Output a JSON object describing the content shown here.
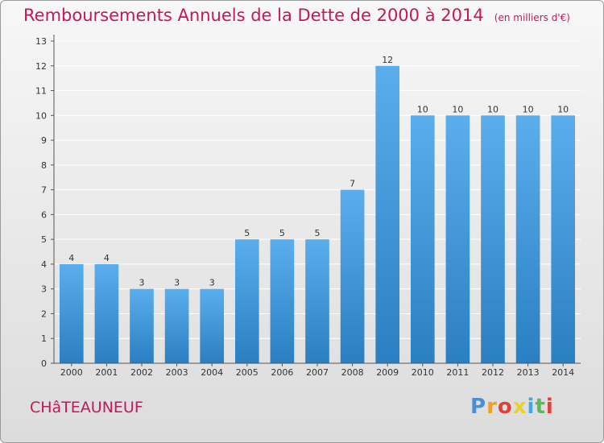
{
  "title": "Remboursements Annuels de la Dette de 2000 à 2014",
  "subtitle": "(en milliers d'€)",
  "place": "CHâTEAUNEUF",
  "logo": {
    "text": "Proxiti",
    "colors": [
      "#4a8fd6",
      "#f0a020",
      "#e0403a",
      "#e8d030",
      "#40a8e0",
      "#5cb85c",
      "#e0403a"
    ]
  },
  "colors": {
    "title": "#c2185b",
    "bar_light": "#5aaeec",
    "bar_dark": "#2a7fc2",
    "grid": "#ffffff",
    "axis": "#555555"
  },
  "chart_data": {
    "type": "bar",
    "categories": [
      "2000",
      "2001",
      "2002",
      "2003",
      "2004",
      "2005",
      "2006",
      "2007",
      "2008",
      "2009",
      "2010",
      "2011",
      "2012",
      "2013",
      "2014"
    ],
    "values": [
      4,
      4,
      3,
      3,
      3,
      5,
      5,
      5,
      7,
      12,
      10,
      10,
      10,
      10,
      10
    ],
    "ylim": [
      0,
      13
    ],
    "yticks": [
      0,
      1,
      2,
      3,
      4,
      5,
      6,
      7,
      8,
      9,
      10,
      11,
      12,
      13
    ],
    "grid": true,
    "legend": "none",
    "data_labels": true
  }
}
